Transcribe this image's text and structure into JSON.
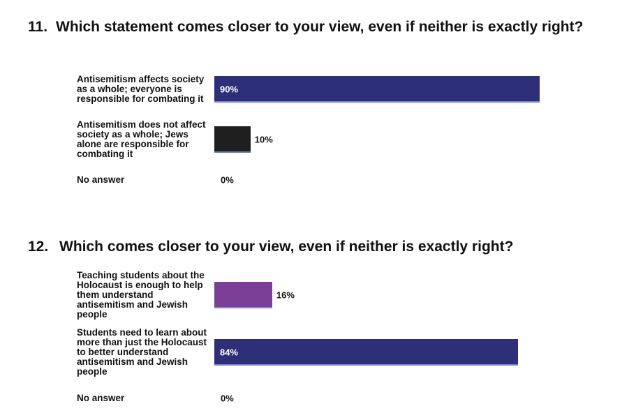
{
  "chart_data": [
    {
      "type": "bar",
      "number": "11.",
      "title": "Which statement comes closer to your view, even if neither is exactly right?",
      "categories": [
        "Antisemitism affects society as a whole; everyone is responsible for combating it",
        "Antisemitism does not affect society as a whole; Jews alone are responsible for combating it",
        "No answer"
      ],
      "values": [
        90,
        10,
        0
      ],
      "value_labels": [
        "90%",
        "10%",
        "0%"
      ],
      "colors": [
        "#2d2f78",
        "#1f1f1f",
        "#2d2f78"
      ]
    },
    {
      "type": "bar",
      "number": "12.",
      "title": "Which comes closer to your view, even if neither is exactly right?",
      "categories": [
        "Teaching students about the Holocaust is enough to help them understand antisemitism and Jewish people",
        "Students need to learn about more than just the Holocaust to better understand antisemitism and Jewish people",
        "No answer"
      ],
      "values": [
        16,
        84,
        0
      ],
      "value_labels": [
        "16%",
        "84%",
        "0%"
      ],
      "colors": [
        "#7b3f97",
        "#2d2f78",
        "#2d2f78"
      ]
    }
  ]
}
